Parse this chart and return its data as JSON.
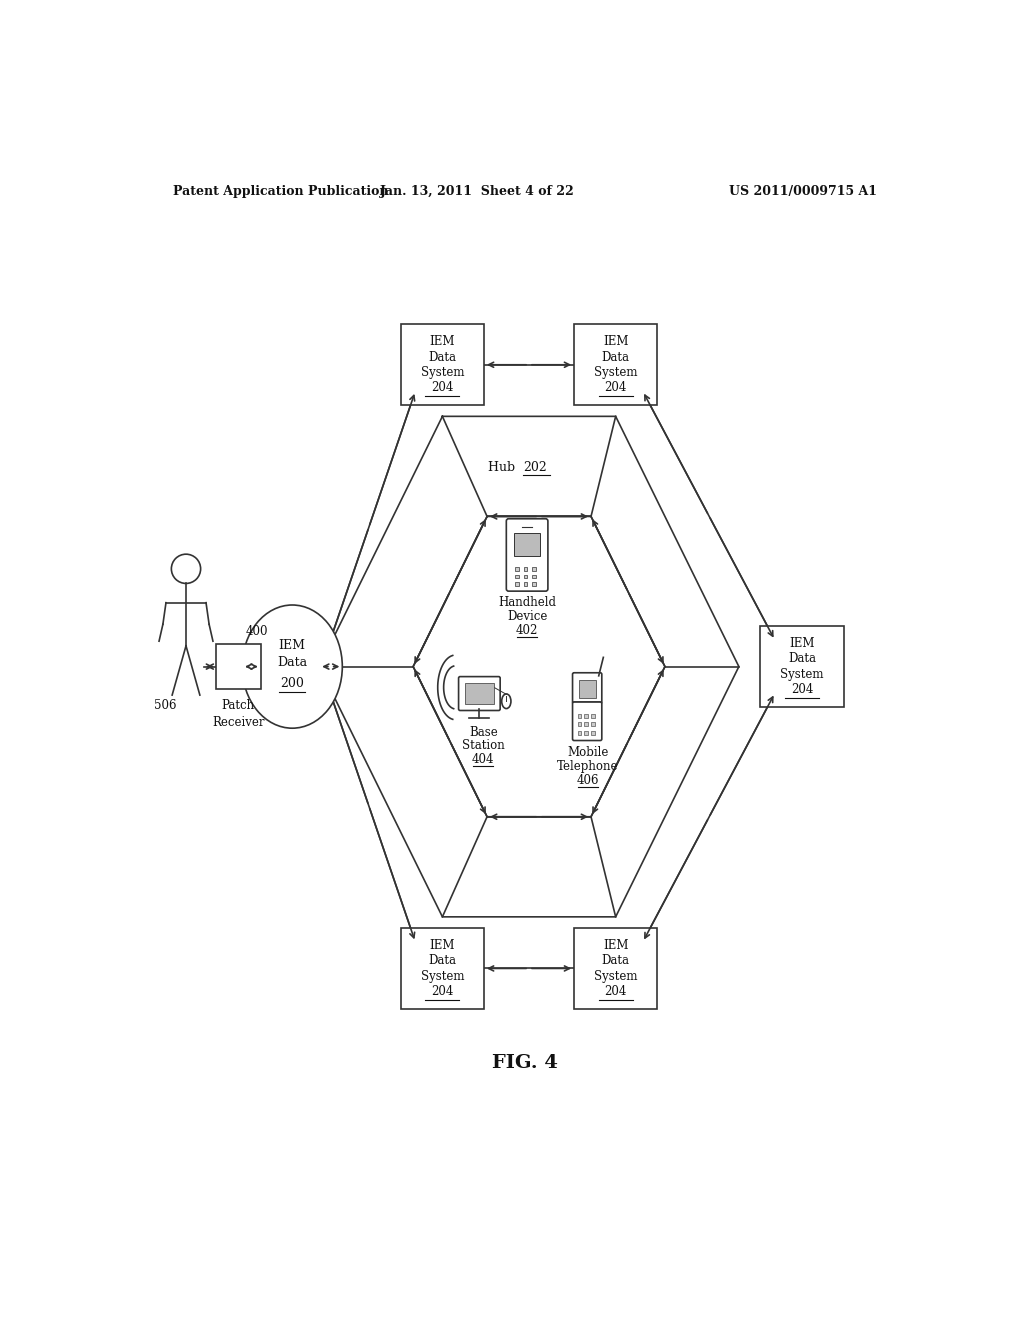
{
  "header_left": "Patent Application Publication",
  "header_mid": "Jan. 13, 2011  Sheet 4 of 22",
  "header_right": "US 2011/0009715 A1",
  "figure_label": "FIG. 4",
  "bg_color": "#ffffff",
  "line_color": "#333333",
  "iem_label": "IEM\nData\nSystem\n204",
  "hub_label": "Hub",
  "hub_num": "202",
  "iem_data_label": "IEM\nData\n200",
  "patch_label": "Patch\nReceiver",
  "patch_num": "400",
  "person_num": "506",
  "handheld_label": "Handheld\nDevice\n402",
  "base_label": "Base\nStation\n404",
  "mobile_label": "Mobile\nTelephone\n406"
}
